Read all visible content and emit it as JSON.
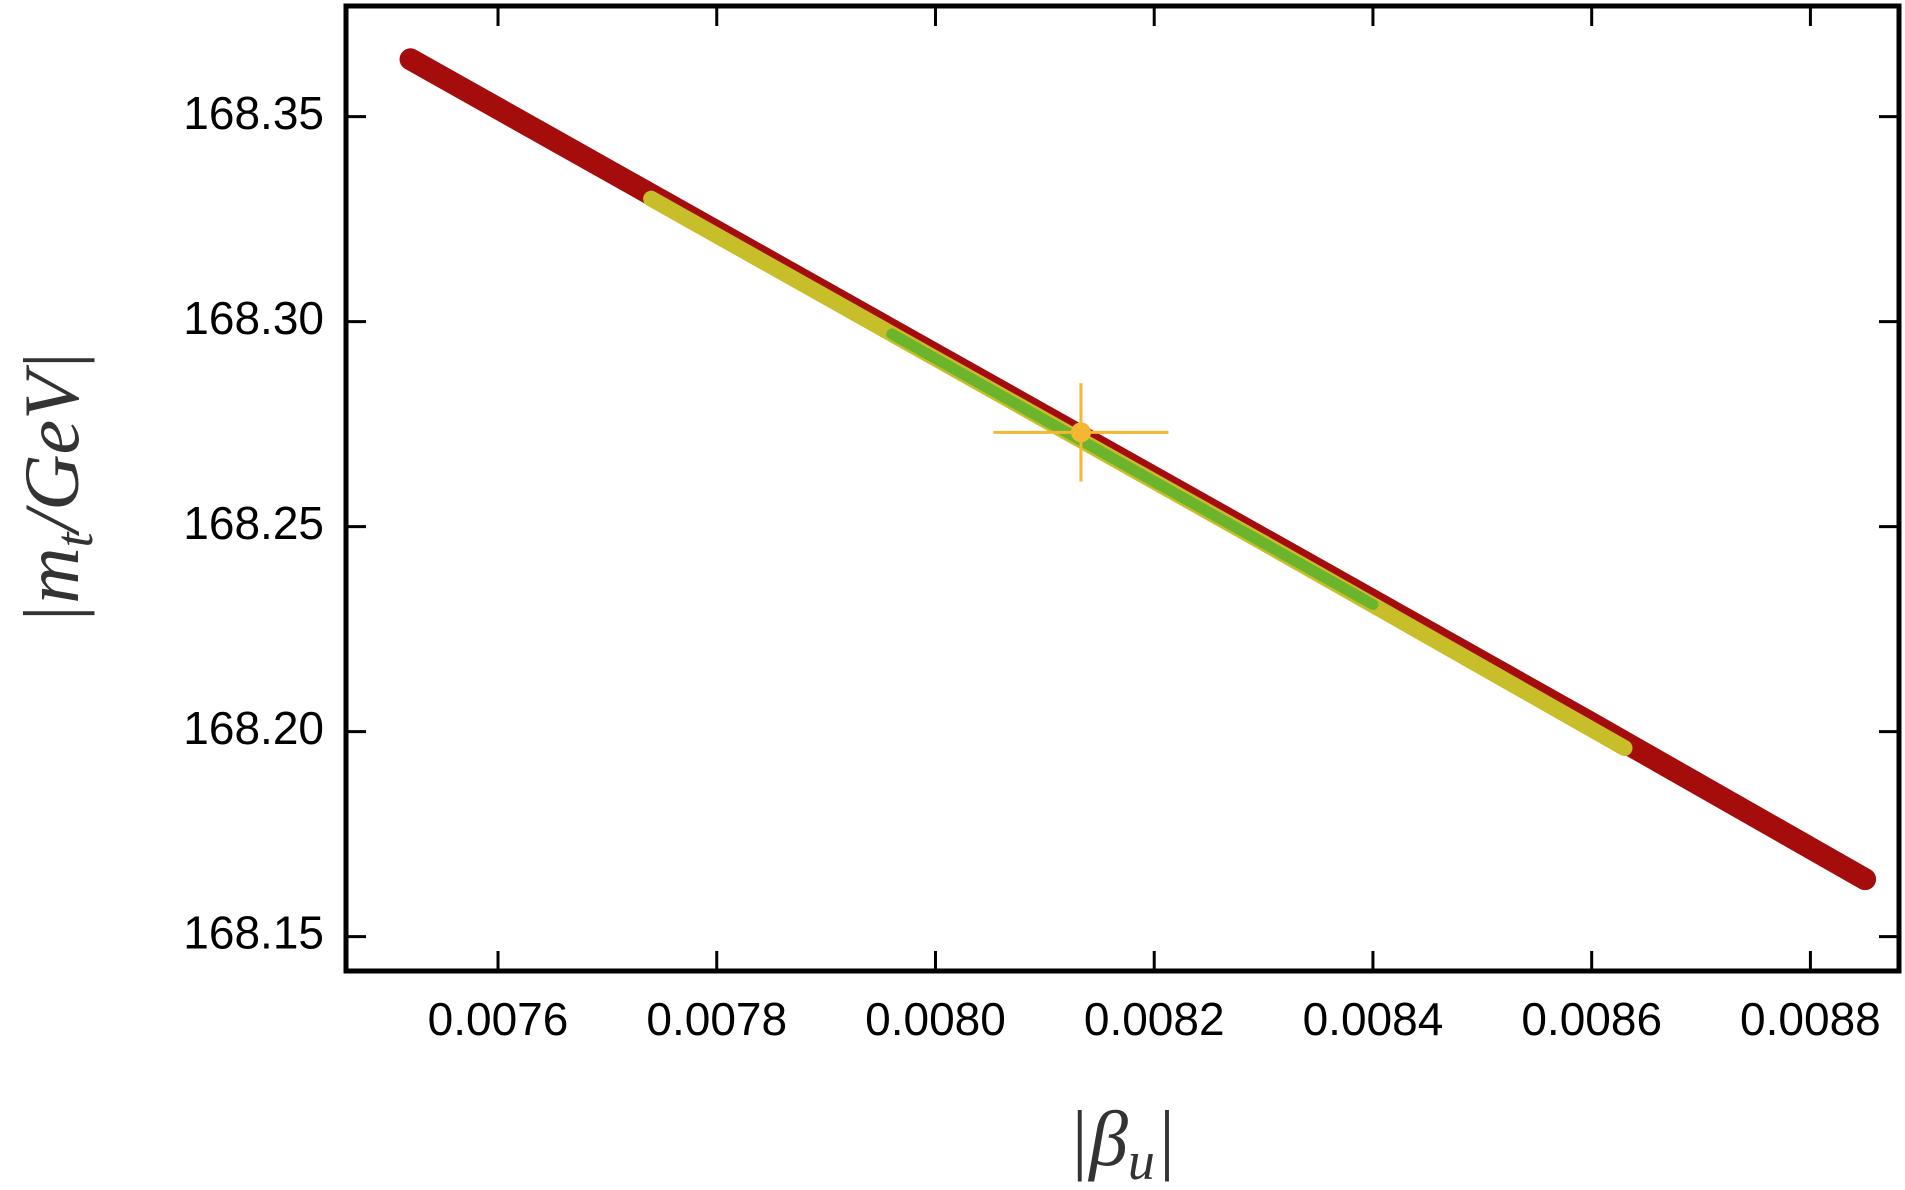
{
  "chart_data": {
    "type": "scatter",
    "xlabel": {
      "open": "|",
      "main": "β",
      "sub": "u",
      "close": "|"
    },
    "ylabel": {
      "main": "|m",
      "sub": "t",
      "rest": "/GeV|"
    },
    "xlim": [
      0.007461,
      0.008881
    ],
    "ylim": [
      168.1416,
      168.377
    ],
    "xticks": [
      0.0076,
      0.0078,
      {
        "value": 0.008,
        "label": "0.0080"
      },
      0.0082,
      0.0084,
      0.0086,
      0.0088
    ],
    "yticks": [
      168.15,
      {
        "value": 168.2,
        "label": "168.20"
      },
      168.25,
      {
        "value": 168.3,
        "label": "168.30"
      },
      168.35
    ],
    "series": [
      {
        "color": "#a50c0c",
        "x": [
          0.00752,
          0.0078,
          0.0082,
          0.0086,
          0.00885
        ],
        "y": [
          168.364,
          168.322,
          168.262,
          168.202,
          168.164
        ]
      },
      {
        "color": "#c8be2a",
        "x": [
          0.00774,
          0.008,
          0.0083,
          0.00863
        ],
        "y": [
          168.33,
          168.291,
          168.246,
          168.196
        ]
      },
      {
        "color": "#6cb42c",
        "x": [
          0.00796,
          0.0081,
          0.0082,
          0.0083,
          0.0084
        ],
        "y": [
          168.297,
          168.276,
          168.261,
          168.246,
          168.231
        ]
      },
      {
        "color": "#f3b731",
        "x": [
          0.008133
        ],
        "y": [
          168.273
        ],
        "xerr": [
          8e-05
        ],
        "yerr": [
          0.012
        ]
      }
    ]
  }
}
